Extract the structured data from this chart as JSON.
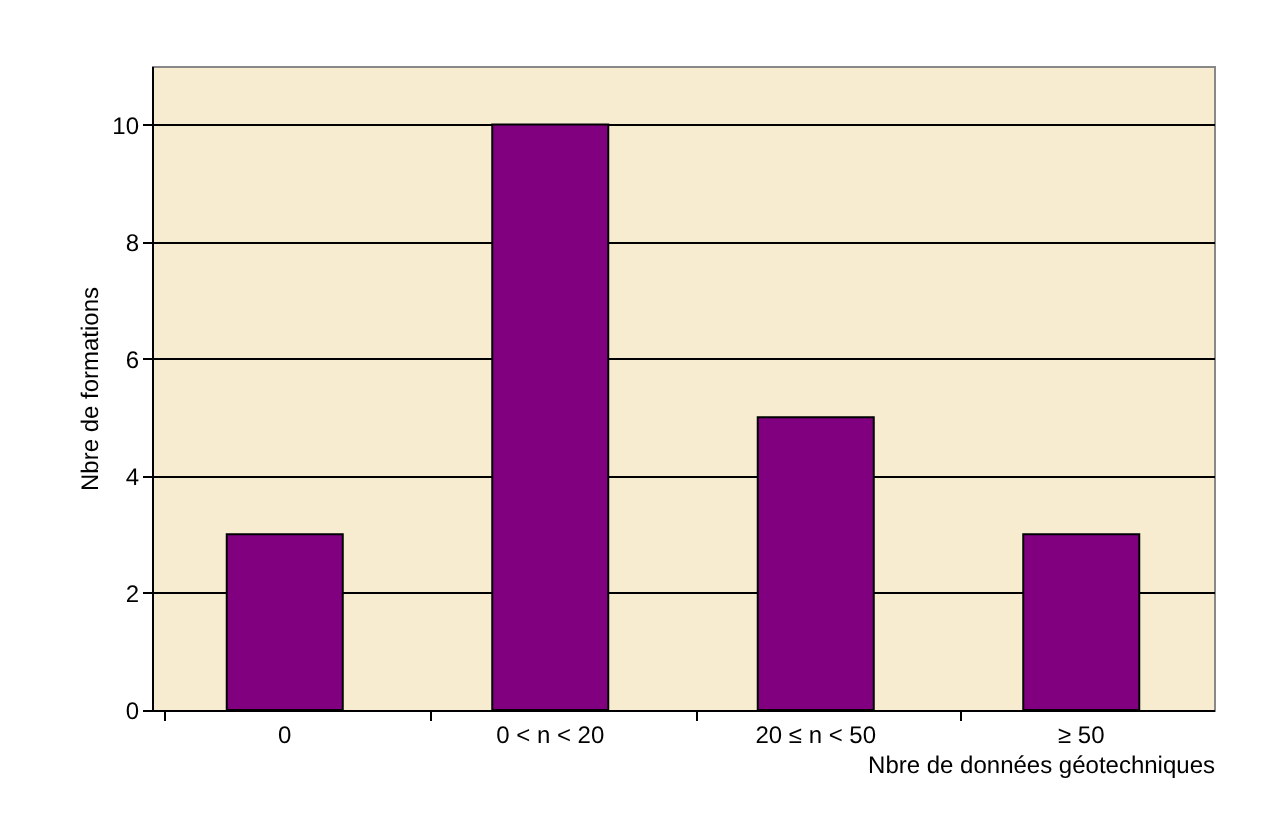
{
  "chart_data": {
    "type": "bar",
    "xlabel": "Nbre de données géotechniques",
    "ylabel": "Nbre de formations",
    "categories": [
      "0",
      "0 < n < 20",
      "20 ≤ n < 50",
      "≥ 50"
    ],
    "values": [
      3,
      10,
      5,
      3
    ],
    "color": "#800080",
    "ylim": [
      0,
      11
    ],
    "yticks": [
      0,
      2,
      4,
      6,
      8,
      10
    ],
    "grid": "y"
  }
}
